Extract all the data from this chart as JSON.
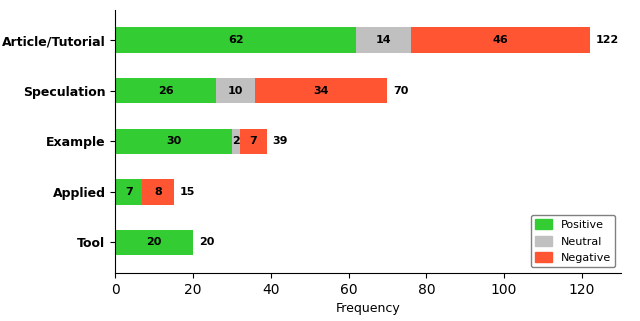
{
  "categories": [
    "Tool",
    "Applied",
    "Example",
    "Speculation",
    "Article/Tutorial"
  ],
  "positive": [
    20,
    7,
    30,
    26,
    62
  ],
  "neutral": [
    0,
    0,
    2,
    10,
    14
  ],
  "negative": [
    0,
    8,
    7,
    34,
    46
  ],
  "totals": [
    20,
    15,
    39,
    70,
    122
  ],
  "colors": {
    "positive": "#33cc33",
    "neutral": "#c0c0c0",
    "negative": "#ff5533"
  },
  "xlabel": "Frequency",
  "legend_labels": [
    "Positive",
    "Neutral",
    "Negative"
  ],
  "xlim": [
    0,
    130
  ],
  "xticks": [
    0,
    20,
    40,
    60,
    80,
    100,
    120
  ],
  "bar_height": 0.5,
  "figsize": [
    6.4,
    3.21
  ],
  "dpi": 100
}
